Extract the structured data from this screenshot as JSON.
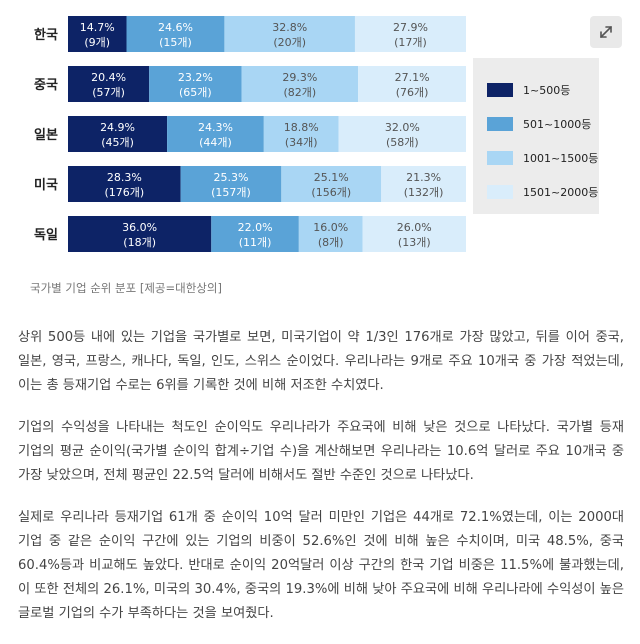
{
  "caption": "국가별 기업 순위 분포 [제공=대한상의]",
  "expand_icon": "expand-arrows-icon",
  "colors": [
    "#0d2366",
    "#5aa3d7",
    "#a9d6f4",
    "#d9edfb"
  ],
  "text_colors": [
    "#ffffff",
    "#ffffff",
    "#555555",
    "#555555"
  ],
  "legend": [
    "1~500등",
    "501~1000등",
    "1001~1500등",
    "1501~2000등"
  ],
  "chart_data": {
    "type": "bar",
    "orientation": "horizontal",
    "stacked": true,
    "title": "",
    "categories": [
      "한국",
      "중국",
      "일본",
      "미국",
      "독일"
    ],
    "series": [
      {
        "name": "1~500등",
        "values": [
          14.7,
          20.4,
          24.9,
          28.3,
          36.0
        ],
        "counts": [
          "(9개)",
          "(57개)",
          "(45개)",
          "(176개)",
          "(18개)"
        ],
        "labels": [
          "14.7%",
          "20.4%",
          "24.9%",
          "28.3%",
          "36.0%"
        ]
      },
      {
        "name": "501~1000등",
        "values": [
          24.6,
          23.2,
          24.3,
          25.3,
          22.0
        ],
        "counts": [
          "(15개)",
          "(65개)",
          "(44개)",
          "(157개)",
          "(11개)"
        ],
        "labels": [
          "24.6%",
          "23.2%",
          "24.3%",
          "25.3%",
          "22.0%"
        ]
      },
      {
        "name": "1001~1500등",
        "values": [
          32.8,
          29.3,
          18.8,
          25.1,
          16.0
        ],
        "counts": [
          "(20개)",
          "(82개)",
          "(34개)",
          "(156개)",
          "(8개)"
        ],
        "labels": [
          "32.8%",
          "29.3%",
          "18.8%",
          "25.1%",
          "16.0%"
        ]
      },
      {
        "name": "1501~2000등",
        "values": [
          27.9,
          27.1,
          32.0,
          21.3,
          26.0
        ],
        "counts": [
          "(17개)",
          "(76개)",
          "(58개)",
          "(132개)",
          "(13개)"
        ],
        "labels": [
          "27.9%",
          "27.1%",
          "32.0%",
          "21.3%",
          "26.0%"
        ]
      }
    ],
    "xlim": [
      0,
      100
    ],
    "legend_position": "right"
  },
  "article": {
    "paragraphs": [
      "상위 500등 내에 있는 기업을 국가별로 보면, 미국기업이 약 1/3인 176개로 가장 많았고, 뒤를 이어 중국, 일본, 영국, 프랑스, 캐나다, 독일, 인도, 스위스 순이었다. 우리나라는 9개로 주요 10개국 중 가장 적었는데, 이는 총 등재기업 수로는 6위를 기록한 것에 비해 저조한 수치였다.",
      "기업의 수익성을 나타내는 척도인 순이익도 우리나라가 주요국에 비해 낮은 것으로 나타났다. 국가별 등재 기업의 평균 순이익(국가별 순이익 합계÷기업 수)을 계산해보면 우리나라는 10.6억 달러로 주요 10개국 중 가장 낮았으며, 전체 평균인 22.5억 달러에 비해서도 절반 수준인 것으로 나타났다.",
      "실제로 우리나라 등재기업 61개 중 순이익 10억 달러 미만인 기업은 44개로 72.1%였는데, 이는 2000대 기업 중 같은 순이익 구간에 있는 기업의 비중이 52.6%인 것에 비해 높은 수치이며, 미국 48.5%, 중국 60.4%등과 비교해도 높았다. 반대로 순이익 20억달러 이상 구간의 한국 기업 비중은 11.5%에 불과했는데, 이 또한 전체의 26.1%, 미국의 30.4%, 중국의 19.3%에 비해 낮아 주요국에 비해 우리나라에 수익성이 높은 글로벌 기업의 수가 부족하다는 것을 보여줬다."
    ]
  }
}
